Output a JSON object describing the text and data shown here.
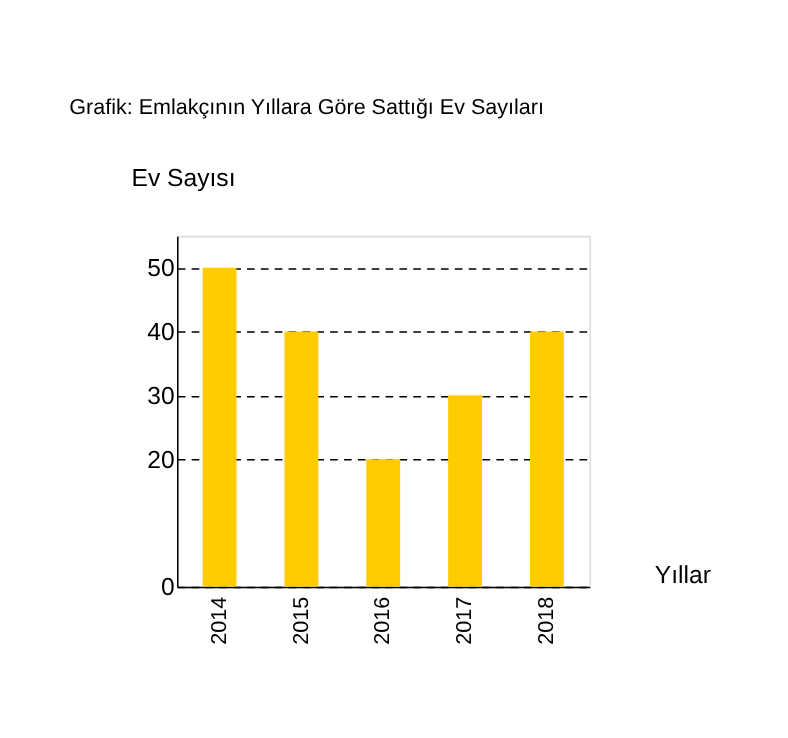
{
  "chart_data": {
    "type": "bar",
    "title": "Grafik: Emlakçının Yıllara Göre Sattığı Ev Sayıları",
    "xlabel": "Yıllar",
    "ylabel": "Ev Sayısı",
    "categories": [
      "2014",
      "2015",
      "2016",
      "2017",
      "2018"
    ],
    "values": [
      50,
      40,
      20,
      30,
      40
    ],
    "color": "#ffcc00",
    "ylim": [
      0,
      55
    ],
    "yticks": [
      0,
      20,
      30,
      40,
      50
    ],
    "grid": "y",
    "line_style": "dashed"
  }
}
